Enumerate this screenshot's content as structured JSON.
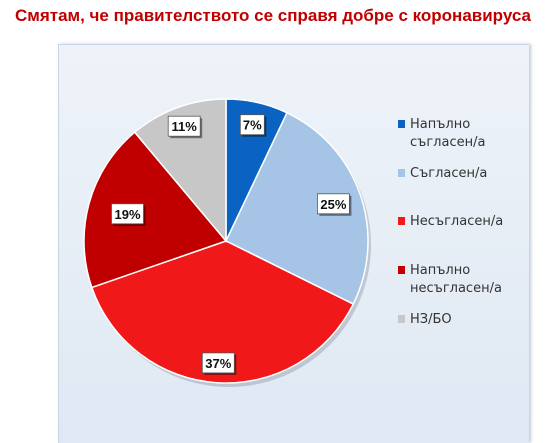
{
  "title": "Смятам, че правителството се справя добре с коронавируса",
  "chart_data": {
    "type": "pie",
    "title": "Смятам, че правителството се справя добре с коронавируса",
    "categories": [
      "Напълно съгласен/а",
      "Съгласен/а",
      "Несъгласен/а",
      "Напълно несъгласен/а",
      "НЗ/БО"
    ],
    "values": [
      7,
      25,
      37,
      19,
      11
    ],
    "data_labels": [
      "7%",
      "25%",
      "37%",
      "19%",
      "11%"
    ],
    "colors": [
      "#0a63c2",
      "#a6c4e6",
      "#f01818",
      "#c00000",
      "#c7c7c7"
    ],
    "legend_position": "right",
    "unit": "%"
  },
  "legend": {
    "items": [
      {
        "label_line1": "Напълно",
        "label_line2": "съгласен/а"
      },
      {
        "label_line1": "Съгласен/а",
        "label_line2": ""
      },
      {
        "label_line1": "Несъгласен/а",
        "label_line2": ""
      },
      {
        "label_line1": "Напълно",
        "label_line2": "несъгласен/а"
      },
      {
        "label_line1": "НЗ/БО",
        "label_line2": ""
      }
    ]
  }
}
